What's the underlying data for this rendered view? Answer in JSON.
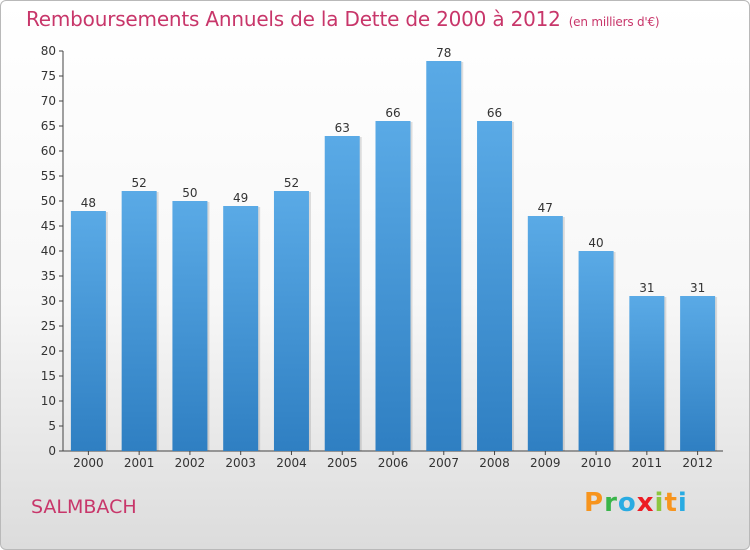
{
  "header": {
    "title": "Remboursements Annuels de la Dette de 2000 à 2012",
    "unit": "(en milliers d'€)"
  },
  "footer": {
    "commune": "SALMBACH",
    "logo_text": "Proxiti"
  },
  "colors": {
    "title": "#c8366a",
    "bar_top": "#5aaae6",
    "bar_bottom": "#2f7fc2",
    "logo": [
      "#f7941d",
      "#39b54a",
      "#29abe2",
      "#ed1c24",
      "#8dc63f",
      "#f7941d",
      "#29abe2"
    ]
  },
  "chart_data": {
    "type": "bar",
    "title": "Remboursements Annuels de la Dette de 2000 à 2012",
    "ylabel": "en milliers d'€",
    "xlabel": "",
    "categories": [
      "2000",
      "2001",
      "2002",
      "2003",
      "2004",
      "2005",
      "2006",
      "2007",
      "2008",
      "2009",
      "2010",
      "2011",
      "2012"
    ],
    "values": [
      48,
      52,
      50,
      49,
      52,
      63,
      66,
      78,
      66,
      47,
      40,
      31,
      31
    ],
    "ylim": [
      0,
      80
    ],
    "yticks": [
      0,
      5,
      10,
      15,
      20,
      25,
      30,
      35,
      40,
      45,
      50,
      55,
      60,
      65,
      70,
      75,
      80
    ],
    "grid": false,
    "data_labels": true
  }
}
